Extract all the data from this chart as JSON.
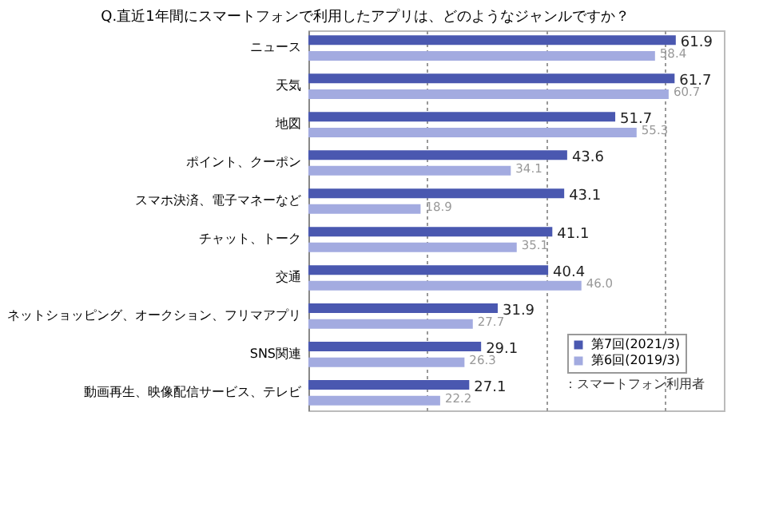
{
  "chart_data": {
    "type": "bar",
    "orientation": "horizontal",
    "title": "Q.直近1年間にスマートフォンで利用したアプリは、どのようなジャンルですか？",
    "categories": [
      "ニュース",
      "天気",
      "地図",
      "ポイント、クーポン",
      "スマホ決済、電子マネーなど",
      "チャット、トーク",
      "交通",
      "ネットショッピング、オークション、フリマアプリ",
      "SNS関連",
      "動画再生、映像配信サービス、テレビ"
    ],
    "series": [
      {
        "name": "第7回(2021/3)",
        "color": "#4a58b0",
        "values": [
          61.9,
          61.7,
          51.7,
          43.6,
          43.1,
          41.1,
          40.4,
          31.9,
          29.1,
          27.1
        ],
        "value_labels": [
          "61.9",
          "61.7",
          "51.7",
          "43.6",
          "43.1",
          "41.1",
          "40.4",
          "31.9",
          "29.1",
          "27.1"
        ]
      },
      {
        "name": "第6回(2019/3)",
        "color": "#a3abe0",
        "values": [
          58.4,
          60.7,
          55.3,
          34.1,
          18.9,
          35.1,
          46.0,
          27.7,
          26.3,
          22.2
        ],
        "value_labels": [
          "58.4",
          "60.7",
          "55.3",
          "34.1",
          "18.9",
          "35.1",
          "46.0",
          "27.7",
          "26.3",
          "22.2"
        ]
      }
    ],
    "xlim": [
      0,
      70
    ],
    "xticks": [
      {
        "value": 20,
        "label": null
      },
      {
        "value": 40,
        "label": null
      },
      {
        "value": 60,
        "label": null
      }
    ],
    "grid": "x",
    "legend": "bottom right",
    "data_labels": true,
    "annotations": [
      "：スマートフォン利用者"
    ]
  }
}
